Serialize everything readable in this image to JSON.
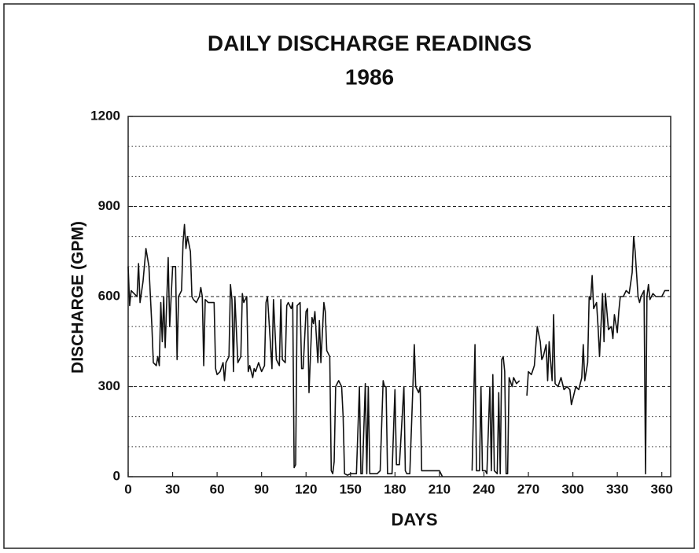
{
  "chart_data": {
    "type": "line",
    "title": "DAILY DISCHARGE READINGS",
    "subtitle": "1986",
    "x_label": "DAYS",
    "y_label": "DISCHARGE (GPM)",
    "xlim": [
      0,
      366
    ],
    "ylim": [
      0,
      1200
    ],
    "xticks": [
      0,
      30,
      60,
      90,
      120,
      150,
      180,
      210,
      240,
      270,
      300,
      330,
      360
    ],
    "yticks": [
      0,
      300,
      600,
      900,
      1200
    ],
    "minor_yticks": [
      100,
      200,
      400,
      500,
      700,
      800,
      1000,
      1100
    ],
    "grid": true,
    "x": [
      0,
      1,
      2,
      4,
      6,
      7,
      8,
      10,
      12,
      14,
      16,
      17,
      19,
      20,
      21,
      22,
      23,
      24,
      25,
      26,
      27,
      28,
      29,
      30,
      32,
      33,
      34,
      36,
      37,
      38,
      39,
      40,
      42,
      43,
      44,
      46,
      48,
      49,
      50,
      51,
      52,
      54,
      56,
      58,
      59,
      60,
      62,
      64,
      65,
      66,
      68,
      69,
      70,
      71,
      72,
      74,
      76,
      77,
      78,
      80,
      81,
      82,
      84,
      85,
      86,
      88,
      90,
      92,
      93,
      94,
      96,
      97,
      98,
      100,
      102,
      103,
      104,
      106,
      107,
      108,
      110,
      111,
      112,
      113,
      114,
      116,
      117,
      118,
      120,
      121,
      122,
      124,
      125,
      126,
      128,
      129,
      130,
      132,
      133,
      134,
      136,
      137,
      138,
      139,
      140,
      142,
      144,
      145,
      146,
      148,
      150,
      152,
      154,
      156,
      157,
      158,
      160,
      161,
      162,
      163,
      165,
      168,
      170,
      172,
      173,
      174,
      175,
      176,
      178,
      180,
      181,
      183,
      186,
      187,
      188,
      190,
      192,
      193,
      194,
      196,
      197,
      198,
      200,
      204,
      208,
      210,
      212,
      222,
      232,
      234,
      235,
      237,
      238,
      239,
      241,
      242,
      244,
      245,
      246,
      247,
      249,
      250,
      251,
      252,
      253,
      254,
      255,
      256,
      257,
      259,
      260,
      262,
      264,
      266,
      269,
      270,
      272,
      274,
      276,
      278,
      279,
      280,
      282,
      283,
      284,
      286,
      287,
      288,
      290,
      292,
      294,
      296,
      298,
      299,
      300,
      302,
      304,
      306,
      307,
      308,
      310,
      311,
      312,
      313,
      314,
      316,
      317,
      318,
      320,
      321,
      322,
      324,
      326,
      327,
      328,
      330,
      331,
      332,
      334,
      336,
      338,
      340,
      341,
      342,
      344,
      345,
      346,
      348,
      349,
      350,
      351,
      352,
      354,
      356,
      358,
      360,
      362,
      365
    ],
    "series": [
      {
        "name": "DISCHARGE",
        "color": "#111111",
        "values": [
          700,
          570,
          620,
          610,
          600,
          710,
          580,
          650,
          760,
          700,
          500,
          380,
          370,
          400,
          370,
          580,
          450,
          600,
          430,
          580,
          730,
          500,
          600,
          700,
          700,
          390,
          600,
          620,
          780,
          840,
          760,
          800,
          750,
          600,
          590,
          580,
          600,
          630,
          600,
          370,
          590,
          580,
          580,
          580,
          360,
          340,
          350,
          380,
          320,
          380,
          400,
          640,
          590,
          350,
          600,
          380,
          400,
          610,
          580,
          600,
          350,
          370,
          330,
          360,
          350,
          380,
          350,
          370,
          580,
          600,
          440,
          360,
          590,
          390,
          370,
          590,
          390,
          380,
          570,
          580,
          560,
          580,
          30,
          40,
          570,
          580,
          360,
          360,
          550,
          560,
          280,
          530,
          510,
          550,
          380,
          520,
          380,
          580,
          550,
          420,
          400,
          20,
          10,
          50,
          300,
          320,
          300,
          200,
          10,
          5,
          10,
          10,
          10,
          300,
          10,
          10,
          310,
          10,
          300,
          10,
          10,
          10,
          20,
          320,
          300,
          300,
          10,
          10,
          10,
          290,
          40,
          40,
          300,
          20,
          10,
          10,
          290,
          440,
          300,
          280,
          300,
          20,
          20,
          20,
          20,
          20,
          0,
          null,
          20,
          440,
          20,
          20,
          300,
          20,
          20,
          10,
          300,
          20,
          340,
          20,
          10,
          280,
          10,
          390,
          400,
          350,
          10,
          10,
          330,
          300,
          330,
          310,
          320,
          null,
          270,
          350,
          340,
          370,
          500,
          450,
          390,
          400,
          440,
          320,
          450,
          320,
          540,
          310,
          300,
          330,
          290,
          300,
          290,
          240,
          260,
          300,
          290,
          330,
          440,
          320,
          380,
          600,
          590,
          670,
          560,
          580,
          500,
          400,
          610,
          450,
          610,
          490,
          500,
          460,
          540,
          480,
          550,
          600,
          600,
          620,
          610,
          680,
          800,
          750,
          600,
          580,
          600,
          620,
          10,
          600,
          640,
          590,
          610,
          600,
          600,
          600,
          620,
          620
        ]
      }
    ]
  }
}
